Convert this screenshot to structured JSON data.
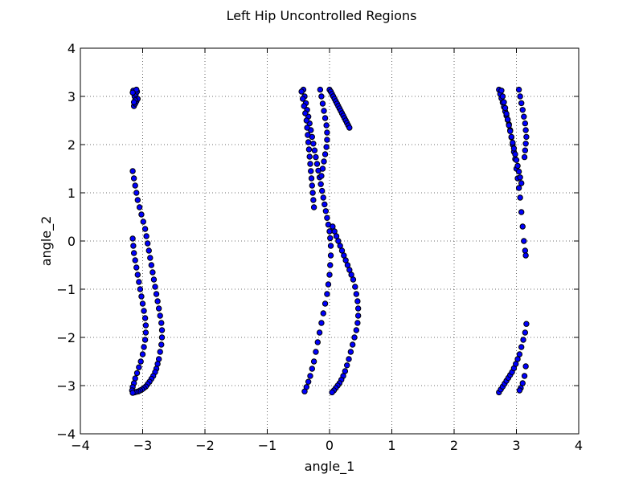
{
  "chart_data": {
    "type": "scatter",
    "title": "Left Hip Uncontrolled Regions",
    "xlabel": "angle_1",
    "ylabel": "angle_2",
    "xlim": [
      -4,
      4
    ],
    "ylim": [
      -4,
      4
    ],
    "xticks": [
      -4,
      -3,
      -2,
      -1,
      0,
      1,
      2,
      3,
      4
    ],
    "yticks": [
      -4,
      -3,
      -2,
      -1,
      0,
      1,
      2,
      3,
      4
    ],
    "xtick_labels": [
      "−4",
      "−3",
      "−2",
      "−1",
      "0",
      "1",
      "2",
      "3",
      "4"
    ],
    "ytick_labels": [
      "−4",
      "−3",
      "−2",
      "−1",
      "0",
      "1",
      "2",
      "3",
      "4"
    ],
    "grid": true,
    "marker_color": "#0000ff",
    "marker_edge_color": "#000000",
    "clusters": [
      {
        "x": [
          -3.14,
          -3.12,
          -3.1,
          -3.08,
          -3.13,
          -3.11,
          -3.09,
          -3.15,
          -3.1,
          -3.12,
          -3.14,
          -3.16
        ],
        "y": [
          2.8,
          2.85,
          2.9,
          2.95,
          3.0,
          3.05,
          3.1,
          3.12,
          3.14,
          2.92,
          2.88,
          3.08
        ]
      },
      {
        "x": [
          -3.16,
          -3.14,
          -3.12,
          -3.1,
          -3.08,
          -3.05,
          -3.02,
          -2.99,
          -2.96,
          -2.94,
          -2.92,
          -2.9,
          -2.88,
          -2.86,
          -2.84,
          -2.82,
          -2.8,
          -2.78,
          -2.76,
          -2.74,
          -2.72,
          -2.7,
          -2.69,
          -2.69,
          -2.7,
          -2.72,
          -2.74,
          -2.76,
          -2.78,
          -2.8,
          -2.83,
          -2.86,
          -2.89,
          -2.92,
          -2.95,
          -2.98,
          -3.01,
          -3.04,
          -3.07,
          -3.1,
          -3.13
        ],
        "y": [
          1.45,
          1.3,
          1.15,
          1.0,
          0.85,
          0.7,
          0.55,
          0.4,
          0.25,
          0.1,
          -0.05,
          -0.2,
          -0.35,
          -0.5,
          -0.65,
          -0.8,
          -0.95,
          -1.1,
          -1.25,
          -1.4,
          -1.55,
          -1.7,
          -1.85,
          -2.0,
          -2.15,
          -2.3,
          -2.45,
          -2.55,
          -2.65,
          -2.72,
          -2.8,
          -2.86,
          -2.92,
          -2.97,
          -3.02,
          -3.05,
          -3.08,
          -3.1,
          -3.12,
          -3.13,
          -3.14
        ]
      },
      {
        "x": [
          -3.16,
          -3.15,
          -3.14,
          -3.12,
          -3.1,
          -3.08,
          -3.06,
          -3.04,
          -3.02,
          -3.0,
          -2.98,
          -2.96,
          -2.95,
          -2.95,
          -2.96,
          -2.98,
          -3.0,
          -3.03,
          -3.06,
          -3.09,
          -3.12,
          -3.14,
          -3.16,
          -3.17,
          -3.16
        ],
        "y": [
          0.05,
          -0.1,
          -0.25,
          -0.4,
          -0.55,
          -0.7,
          -0.85,
          -1.0,
          -1.15,
          -1.3,
          -1.45,
          -1.6,
          -1.75,
          -1.9,
          -2.05,
          -2.2,
          -2.35,
          -2.5,
          -2.62,
          -2.74,
          -2.85,
          -2.95,
          -3.03,
          -3.1,
          -3.15
        ]
      },
      {
        "x": [
          -0.42,
          -0.4,
          -0.38,
          -0.36,
          -0.34,
          -0.32,
          -0.3,
          -0.28,
          -0.26,
          -0.24,
          -0.22,
          -0.2,
          -0.18,
          -0.16,
          -0.14,
          -0.12,
          -0.1,
          -0.08,
          -0.06,
          -0.04,
          -0.02,
          0.0,
          0.01,
          0.02,
          0.02,
          0.01,
          0.0,
          -0.02,
          -0.04,
          -0.07,
          -0.1,
          -0.13,
          -0.16,
          -0.19,
          -0.22,
          -0.25,
          -0.28,
          -0.31,
          -0.34,
          -0.37,
          -0.4
        ],
        "y": [
          3.14,
          3.0,
          2.86,
          2.72,
          2.58,
          2.44,
          2.3,
          2.16,
          2.02,
          1.88,
          1.74,
          1.6,
          1.46,
          1.32,
          1.18,
          1.04,
          0.9,
          0.76,
          0.62,
          0.48,
          0.34,
          0.2,
          0.06,
          -0.1,
          -0.3,
          -0.5,
          -0.7,
          -0.9,
          -1.1,
          -1.3,
          -1.5,
          -1.7,
          -1.9,
          -2.1,
          -2.3,
          -2.5,
          -2.65,
          -2.8,
          -2.92,
          -3.03,
          -3.12
        ]
      },
      {
        "x": [
          -0.45,
          -0.43,
          -0.41,
          -0.39,
          -0.37,
          -0.36,
          -0.35,
          -0.34,
          -0.33,
          -0.32,
          -0.31,
          -0.3,
          -0.29,
          -0.28,
          -0.27,
          -0.26,
          -0.25
        ],
        "y": [
          3.1,
          2.95,
          2.8,
          2.65,
          2.5,
          2.35,
          2.2,
          2.05,
          1.9,
          1.75,
          1.6,
          1.45,
          1.3,
          1.15,
          1.0,
          0.85,
          0.7
        ]
      },
      {
        "x": [
          -0.15,
          -0.13,
          -0.11,
          -0.09,
          -0.07,
          -0.05,
          -0.04,
          -0.04,
          -0.05,
          -0.07,
          -0.09,
          -0.11,
          -0.13
        ],
        "y": [
          3.14,
          3.0,
          2.85,
          2.7,
          2.55,
          2.4,
          2.25,
          2.1,
          1.95,
          1.8,
          1.65,
          1.5,
          1.35
        ]
      },
      {
        "x": [
          0.05,
          0.08,
          0.11,
          0.14,
          0.17,
          0.2,
          0.23,
          0.26,
          0.29,
          0.32,
          0.35,
          0.38,
          0.41,
          0.43,
          0.45,
          0.46,
          0.46,
          0.45,
          0.43,
          0.4,
          0.37,
          0.34,
          0.31,
          0.28,
          0.25,
          0.22,
          0.19,
          0.16,
          0.13,
          0.1,
          0.07,
          0.04
        ],
        "y": [
          0.3,
          0.2,
          0.1,
          0.0,
          -0.1,
          -0.2,
          -0.3,
          -0.4,
          -0.5,
          -0.6,
          -0.7,
          -0.8,
          -0.95,
          -1.1,
          -1.25,
          -1.4,
          -1.55,
          -1.7,
          -1.85,
          -2.0,
          -2.15,
          -2.3,
          -2.45,
          -2.58,
          -2.7,
          -2.8,
          -2.88,
          -2.95,
          -3.0,
          -3.05,
          -3.1,
          -3.14
        ]
      },
      {
        "x": [
          0.0,
          0.02,
          0.04,
          0.06,
          0.08,
          0.1,
          0.12,
          0.14,
          0.16,
          0.18,
          0.2,
          0.22,
          0.24,
          0.26,
          0.28,
          0.3,
          0.32
        ],
        "y": [
          3.14,
          3.1,
          3.05,
          3.0,
          2.95,
          2.9,
          2.85,
          2.8,
          2.75,
          2.7,
          2.65,
          2.6,
          2.55,
          2.5,
          2.45,
          2.4,
          2.35
        ]
      },
      {
        "x": [
          2.72,
          2.74,
          2.76,
          2.78,
          2.8,
          2.82,
          2.84,
          2.86,
          2.88,
          2.9,
          2.92,
          2.94,
          2.96,
          2.98,
          3.0,
          3.02,
          3.04,
          3.06,
          3.08,
          3.1,
          3.12,
          3.14,
          3.15
        ],
        "y": [
          3.14,
          3.05,
          2.96,
          2.87,
          2.78,
          2.69,
          2.6,
          2.51,
          2.42,
          2.3,
          2.15,
          2.0,
          1.85,
          1.7,
          1.5,
          1.3,
          1.1,
          0.9,
          0.6,
          0.3,
          0.0,
          -0.2,
          -0.3
        ]
      },
      {
        "x": [
          2.76,
          2.78,
          2.8,
          2.82,
          2.84,
          2.86,
          2.88,
          2.9,
          2.92,
          2.94,
          2.96,
          2.98,
          3.0,
          3.02,
          3.04,
          3.06,
          3.08
        ],
        "y": [
          3.12,
          3.0,
          2.88,
          2.76,
          2.64,
          2.52,
          2.4,
          2.28,
          2.16,
          2.04,
          1.92,
          1.8,
          1.68,
          1.56,
          1.44,
          1.32,
          1.2
        ]
      },
      {
        "x": [
          3.04,
          3.06,
          3.08,
          3.1,
          3.12,
          3.14,
          3.15,
          3.16,
          3.15,
          3.14,
          3.13
        ],
        "y": [
          3.14,
          3.0,
          2.86,
          2.72,
          2.58,
          2.44,
          2.3,
          2.16,
          2.02,
          1.88,
          1.74
        ]
      },
      {
        "x": [
          2.72,
          2.75,
          2.78,
          2.81,
          2.84,
          2.87,
          2.9,
          2.93,
          2.96,
          2.99,
          3.02,
          3.05,
          3.08,
          3.11,
          3.14,
          3.16,
          3.15,
          3.13,
          3.1,
          3.07,
          3.05
        ],
        "y": [
          -3.14,
          -3.08,
          -3.02,
          -2.96,
          -2.9,
          -2.84,
          -2.78,
          -2.72,
          -2.64,
          -2.55,
          -2.45,
          -2.35,
          -2.2,
          -2.05,
          -1.9,
          -1.72,
          -2.6,
          -2.8,
          -2.95,
          -3.05,
          -3.1
        ]
      }
    ]
  }
}
